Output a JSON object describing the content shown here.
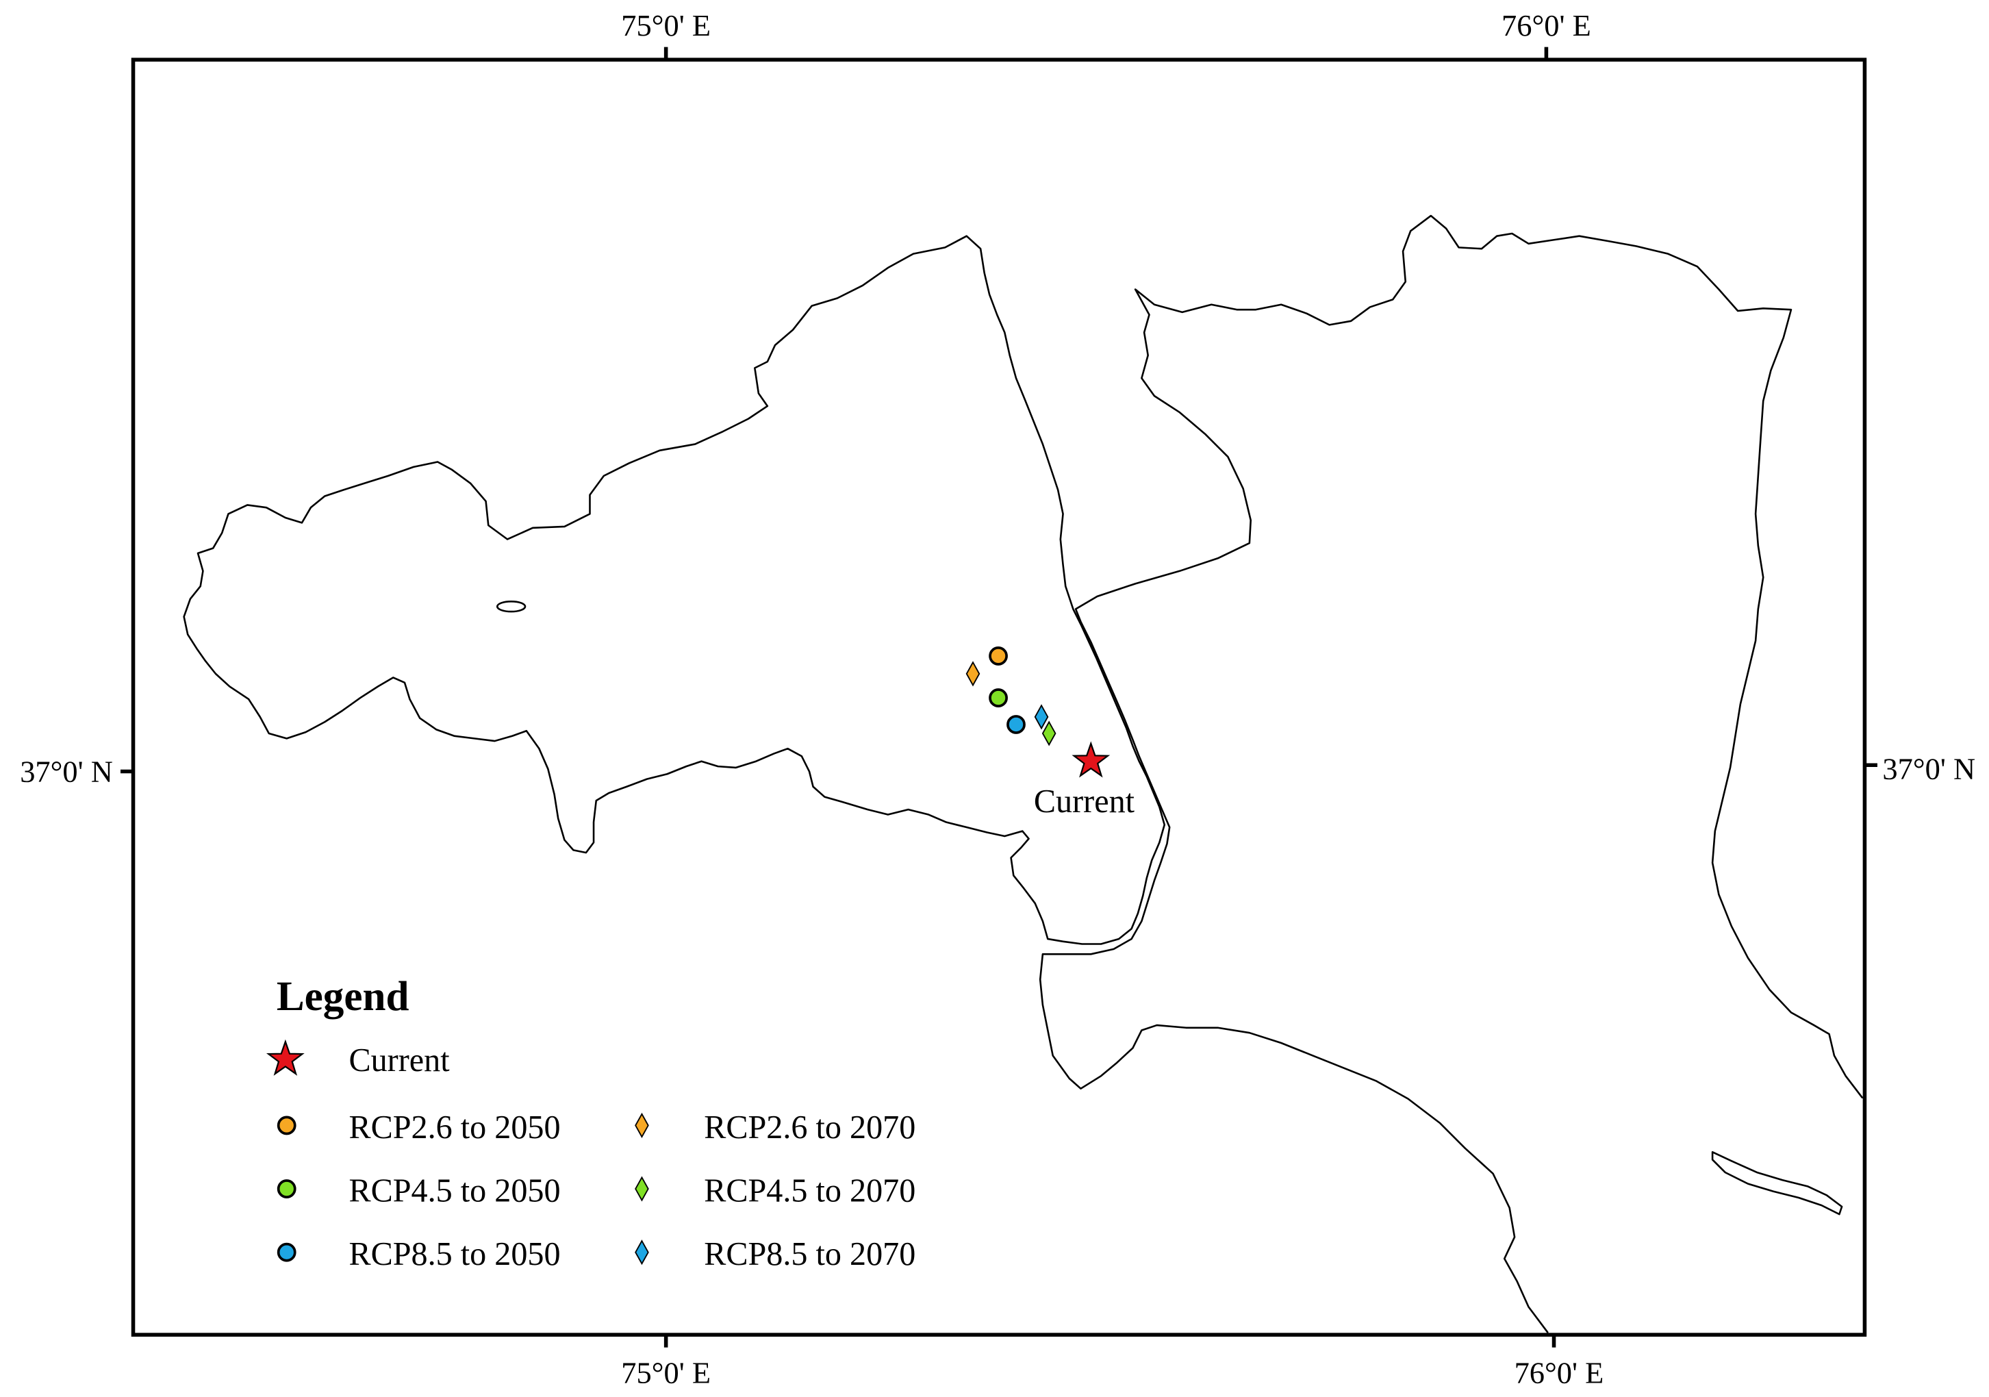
{
  "map": {
    "graticule": {
      "top": [
        "75°0' E",
        "76°0' E"
      ],
      "bottom": [
        "75°0' E",
        "76°0' E"
      ],
      "left": "37°0' N",
      "right": "37°0' N"
    },
    "annotation": "Current",
    "outline_color": "#000000",
    "background": "#FFFFFF"
  },
  "legend": {
    "title": "Legend",
    "items": [
      {
        "label": "Current",
        "symbol": "star-icon",
        "color": "#E3141B"
      },
      {
        "label": "RCP2.6 to 2050",
        "symbol": "circle-icon",
        "color": "#F7A823"
      },
      {
        "label": "RCP4.5 to 2050",
        "symbol": "circle-icon",
        "color": "#80E025"
      },
      {
        "label": "RCP8.5 to 2050",
        "symbol": "circle-icon",
        "color": "#1EA6E3"
      },
      {
        "label": "RCP2.6 to 2070",
        "symbol": "diamond-icon",
        "color": "#F7A823"
      },
      {
        "label": "RCP4.5 to 2070",
        "symbol": "diamond-icon",
        "color": "#80E025"
      },
      {
        "label": "RCP8.5 to 2070",
        "symbol": "diamond-icon",
        "color": "#1EA6E3"
      }
    ]
  }
}
